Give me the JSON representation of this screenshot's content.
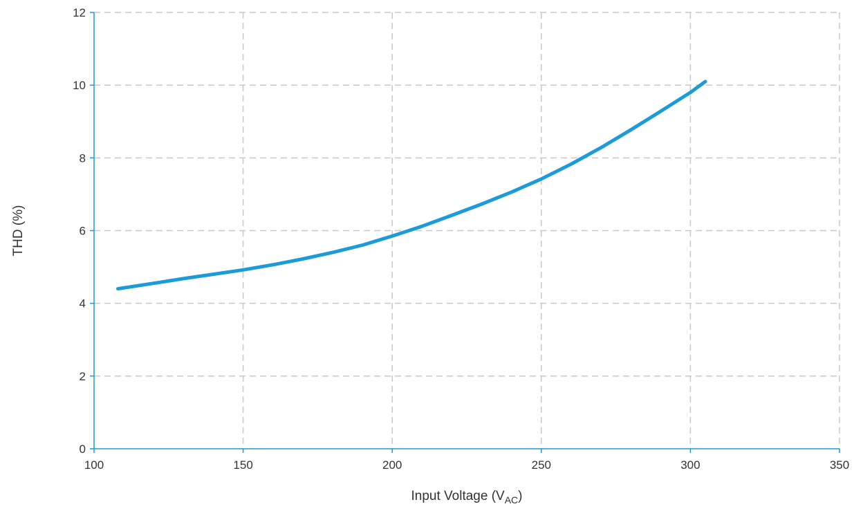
{
  "chart_data": {
    "type": "line",
    "title": "",
    "xlabel": "Input Voltage (V",
    "xlabel_sub": "AC",
    "xlabel_suffix": ")",
    "ylabel": "THD (%)",
    "xlim": [
      100,
      350
    ],
    "ylim": [
      0,
      12
    ],
    "x_ticks": [
      100,
      150,
      200,
      250,
      300,
      350
    ],
    "y_ticks": [
      0,
      2,
      4,
      6,
      8,
      10,
      12
    ],
    "x_tick_labels": [
      "100",
      "150",
      "200",
      "250",
      "300",
      "350"
    ],
    "y_tick_labels": [
      "0",
      "2",
      "4",
      "6",
      "8",
      "10",
      "12"
    ],
    "grid": true,
    "colors": {
      "series": "#1b9bd7",
      "axis": "#1b9bd7",
      "grid": "#c8c8c8"
    },
    "series": [
      {
        "x": [
          108,
          120,
          130,
          140,
          150,
          160,
          170,
          180,
          190,
          200,
          210,
          220,
          230,
          240,
          250,
          260,
          270,
          280,
          290,
          300,
          305
        ],
        "values": [
          4.4,
          4.55,
          4.68,
          4.8,
          4.92,
          5.06,
          5.22,
          5.4,
          5.6,
          5.85,
          6.12,
          6.42,
          6.73,
          7.06,
          7.42,
          7.83,
          8.28,
          8.77,
          9.28,
          9.8,
          10.1
        ]
      }
    ]
  }
}
